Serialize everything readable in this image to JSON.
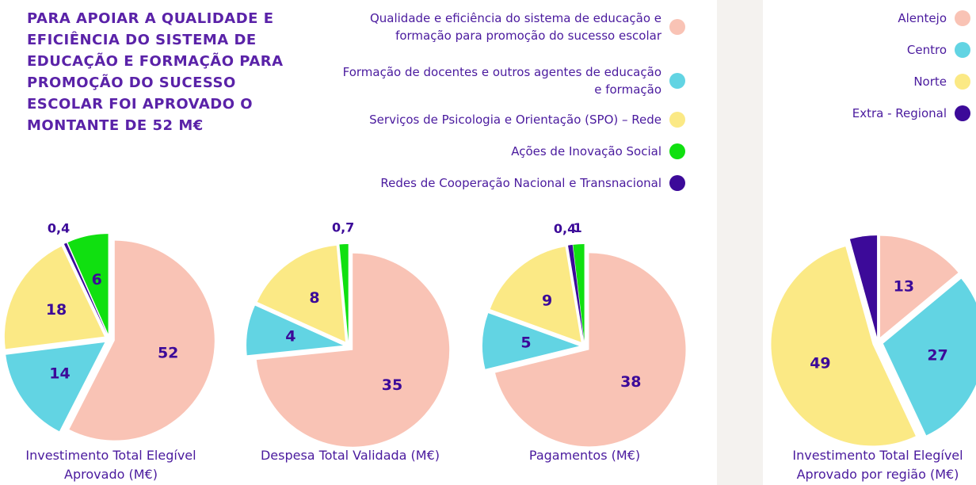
{
  "heading": "PARA APOIAR A QUALIDADE E EFICIÊNCIA DO SISTEMA DE EDUCAÇÃO E FORMAÇÃO PARA PROMOÇÃO DO SUCESSO ESCOLAR FOI APROVADO O MONTANTE DE 52 M€",
  "chart_data": [
    {
      "type": "pie",
      "title": "Investimento Total Elegível Aprovado (M€)",
      "categories": [
        "Qualidade e eficiência do sistema de educação e formação para promoção do sucesso escolar",
        "Formação de docentes e outros agentes de educação e formação",
        "Serviços de Psicologia e Orientação (SPO) – Rede",
        "Redes de Cooperação Nacional e Transnacional",
        "Ações de Inovação Social"
      ],
      "colors": [
        "#f9c3b5",
        "#62d4e3",
        "#fbe985",
        "#3c0a99",
        "#10e010"
      ],
      "values": [
        52,
        14,
        18,
        0.4,
        6
      ],
      "value_labels": [
        "52",
        "14",
        "18",
        "0,4",
        "6"
      ],
      "legend_order": [
        0,
        1,
        2,
        4,
        3
      ]
    },
    {
      "type": "pie",
      "title": "Despesa Total Validada (M€)",
      "values": [
        35,
        4,
        8,
        null,
        0.7
      ],
      "value_labels": [
        "35",
        "4",
        "8",
        null,
        "0,7"
      ]
    },
    {
      "type": "pie",
      "title": "Pagamentos (M€)",
      "values": [
        38,
        5,
        9,
        0.4,
        1
      ],
      "value_labels": [
        "38",
        "5",
        "9",
        "0,4",
        "1"
      ]
    },
    {
      "type": "pie",
      "title": "Investimento Total Elegível Aprovado por região (M€)",
      "categories": [
        "Alentejo",
        "Centro",
        "Norte",
        "Extra - Regional"
      ],
      "colors": [
        "#f9c3b5",
        "#62d4e3",
        "#fbe985",
        "#3c0a99"
      ],
      "values": [
        13,
        27,
        49,
        4
      ]
    }
  ]
}
